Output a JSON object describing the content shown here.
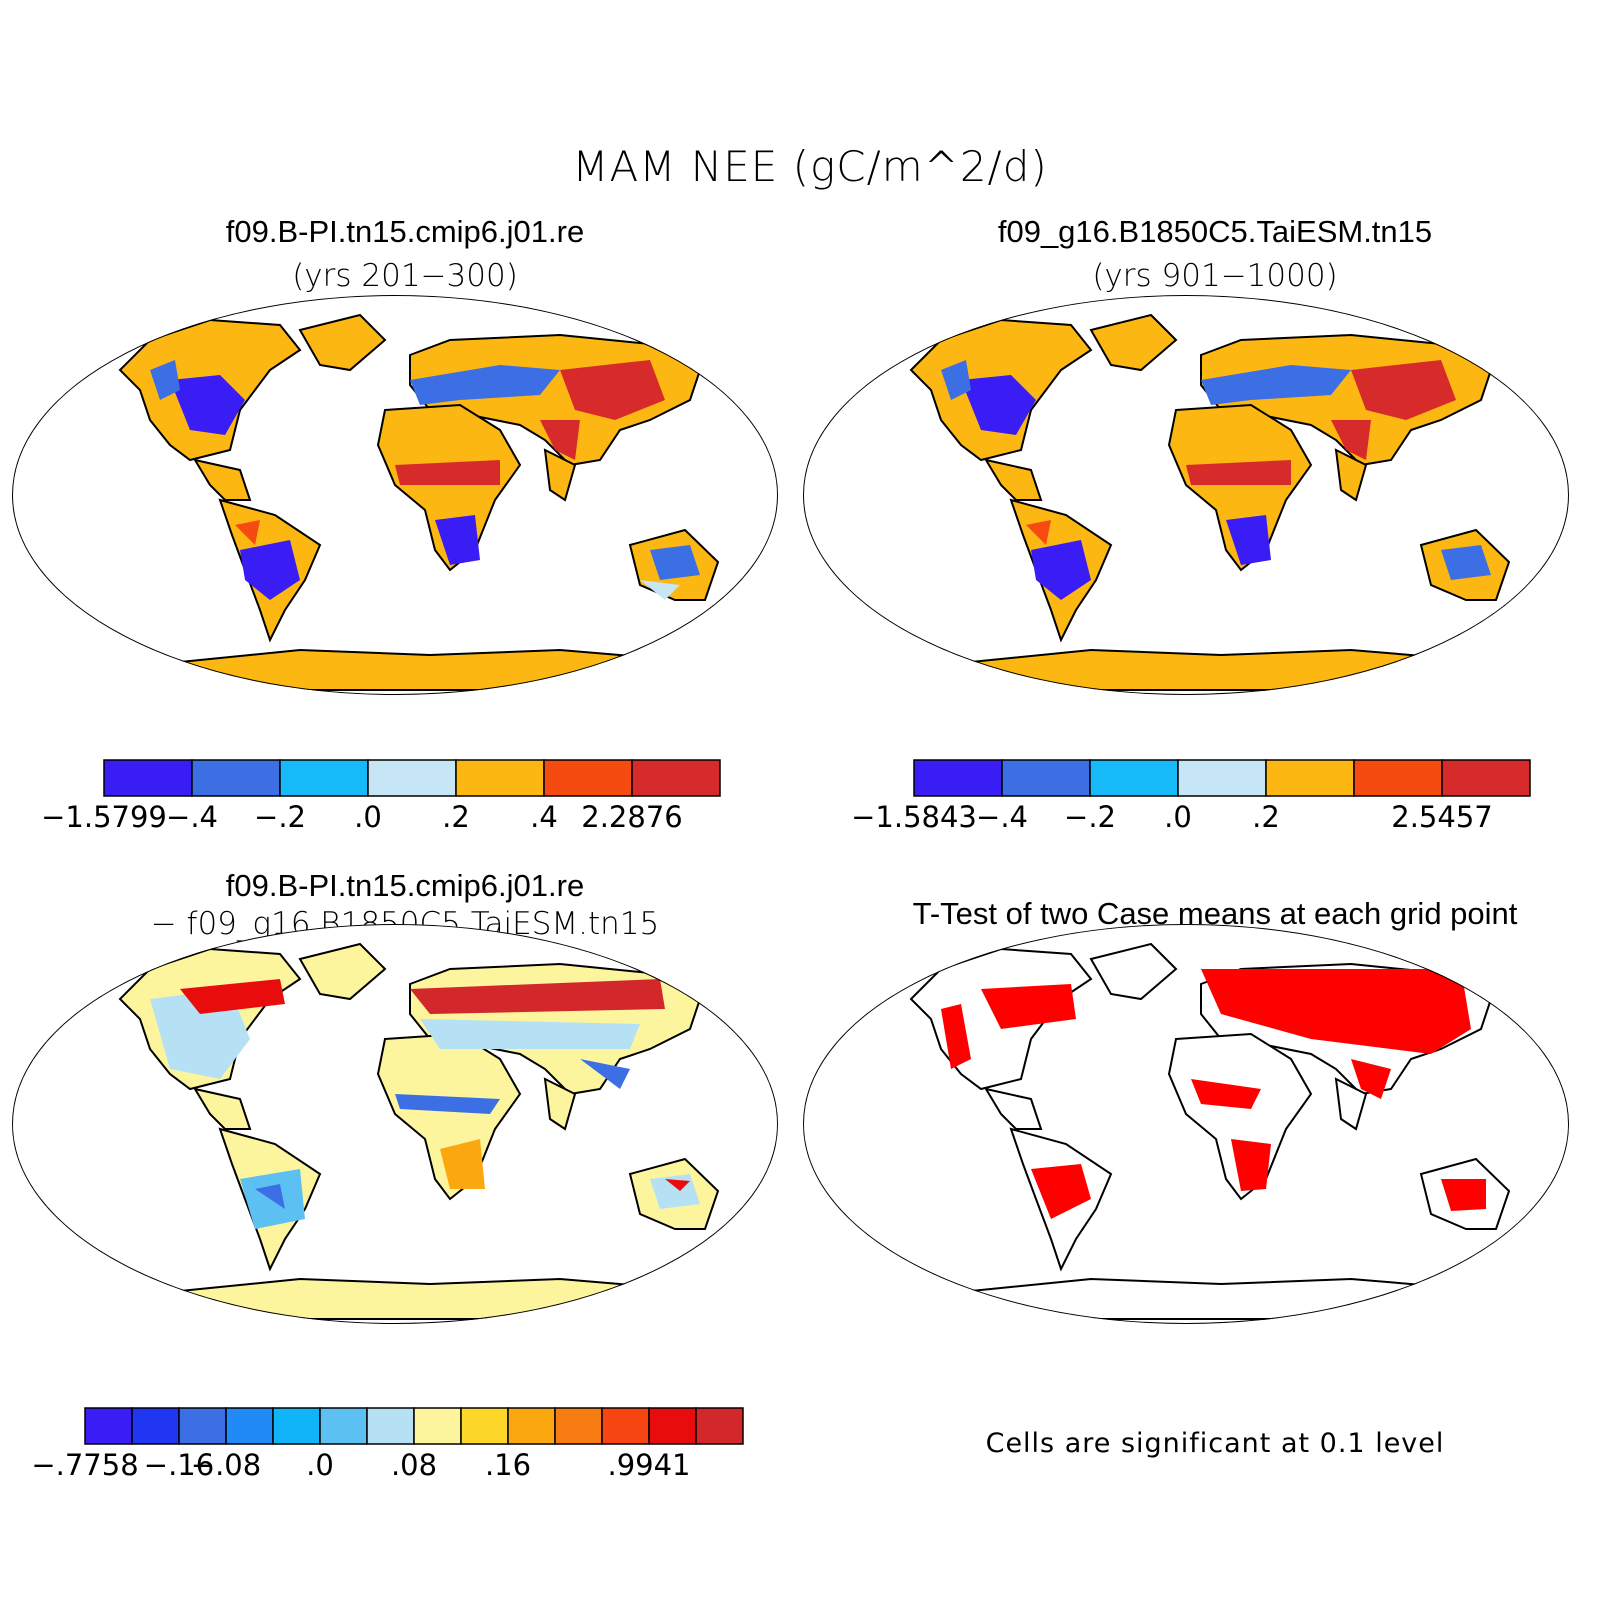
{
  "title": "MAM NEE (gC/m^2/d)",
  "panels": [
    {
      "title": "f09.B-PI.tn15.cmip6.j01.re",
      "subtitle": "(yrs 201−300)"
    },
    {
      "title": "f09_g16.B1850C5.TaiESM.tn15",
      "subtitle": "(yrs 901−1000)"
    },
    {
      "title": "f09.B-PI.tn15.cmip6.j01.re",
      "subtitle": "− f09_g16.B1850C5.TaiESM.tn15"
    },
    {
      "title": "T-Test of two Case means at each grid point",
      "note": "Cells are significant at 0.1 level"
    }
  ],
  "colorbars": [
    {
      "colors": [
        "#3a1cf5",
        "#3c6fe4",
        "#16baf8",
        "#c6e5f5",
        "#fcb712",
        "#f54a10",
        "#d62a2b"
      ],
      "labels": [
        "−1.5799",
        "−.4",
        "−.2",
        ".0",
        ".2",
        ".4",
        "2.2876"
      ]
    },
    {
      "colors": [
        "#3a1cf5",
        "#3c6fe4",
        "#16baf8",
        "#c6e5f5",
        "#fcb712",
        "#f54a10",
        "#d62a2b"
      ],
      "labels": [
        "−1.5843",
        "−.4",
        "−.2",
        ".0",
        ".2",
        "",
        "2.5457"
      ]
    },
    {
      "colors": [
        "#3a1cf5",
        "#2136f0",
        "#3c6fe4",
        "#228af7",
        "#12b4f9",
        "#5cc1f2",
        "#b6e1f5",
        "#fdf59e",
        "#fdd72a",
        "#fba710",
        "#f77c12",
        "#f64510",
        "#e80c0c",
        "#d2282b"
      ],
      "labels": [
        "−.7758",
        "",
        "−.16",
        "−.08",
        "",
        ".0",
        "",
        ".08",
        "",
        ".16",
        "",
        "",
        ".9941"
      ]
    }
  ]
}
